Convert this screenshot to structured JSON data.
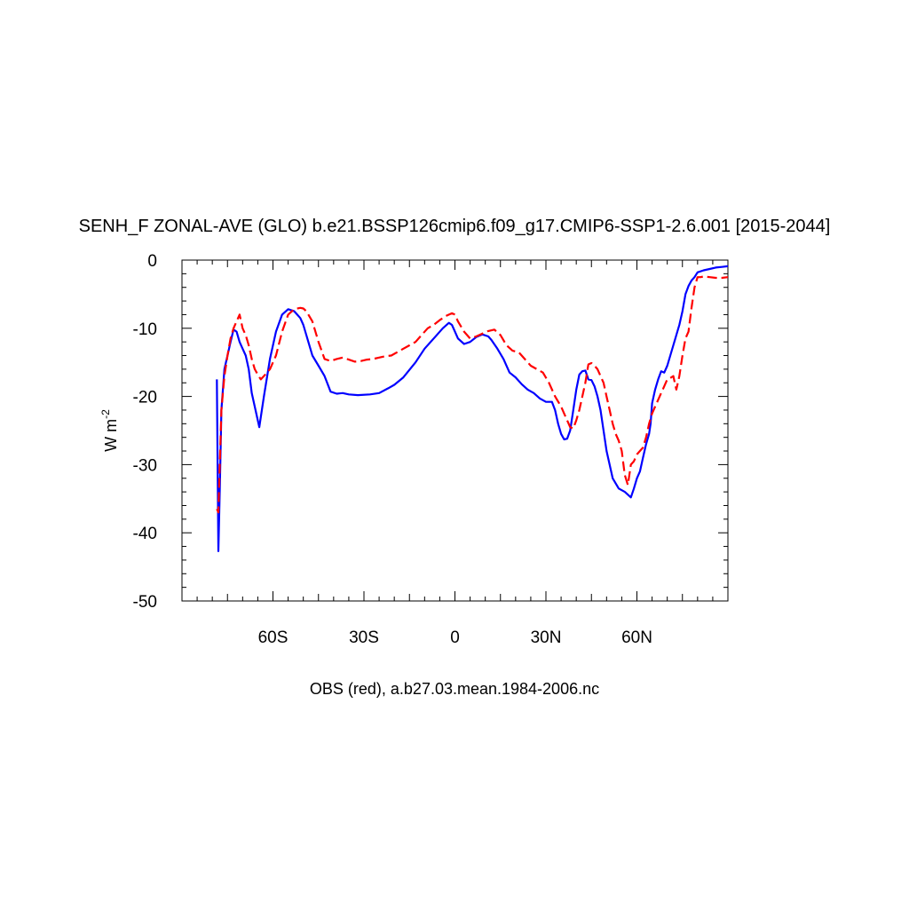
{
  "chart_data": {
    "type": "line",
    "title": "SENH_F ZONAL-AVE (GLO) b.e21.BSSP126cmip6.f09_g17.CMIP6-SSP1-2.6.001 [2015-2044]",
    "xlabel": "OBS (red), a.b27.03.mean.1984-2006.nc",
    "ylabel": {
      "base": "W m",
      "sup": "-2"
    },
    "xlim": [
      -90,
      90
    ],
    "ylim": [
      -50,
      0
    ],
    "grid": false,
    "x_ticks": [
      {
        "value": -60,
        "label": "60S"
      },
      {
        "value": -30,
        "label": "30S"
      },
      {
        "value": 0,
        "label": "0"
      },
      {
        "value": 30,
        "label": "30N"
      },
      {
        "value": 60,
        "label": "60N"
      }
    ],
    "y_ticks": [
      {
        "value": 0,
        "label": "0"
      },
      {
        "value": -10,
        "label": "-10"
      },
      {
        "value": -20,
        "label": "-20"
      },
      {
        "value": -30,
        "label": "-30"
      },
      {
        "value": -40,
        "label": "-40"
      },
      {
        "value": -50,
        "label": "-50"
      }
    ],
    "series": [
      {
        "color": "#0000ff",
        "dash": "solid",
        "x": [
          -78.5,
          -78,
          -77.5,
          -77,
          -76,
          -75,
          -74,
          -73,
          -72,
          -71,
          -70,
          -69,
          -68,
          -67,
          -66,
          -65,
          -64.5,
          -63,
          -61,
          -59,
          -57,
          -55,
          -53,
          -52,
          -51,
          -50,
          -49,
          -47,
          -45,
          -43,
          -41,
          -39,
          -37,
          -35,
          -32,
          -28,
          -25,
          -22,
          -20,
          -17,
          -13,
          -10,
          -7,
          -4,
          -2,
          -1,
          0,
          1,
          3,
          5,
          7,
          9,
          11,
          12,
          14,
          16,
          18,
          20,
          22,
          24,
          26,
          28,
          30,
          32,
          33,
          34,
          35,
          36,
          37,
          38,
          39,
          40,
          41,
          42,
          43,
          44,
          45,
          46,
          47,
          48,
          49,
          50,
          52,
          54,
          56,
          58,
          59,
          60,
          61,
          62,
          63,
          64,
          64.5,
          65,
          66,
          67,
          68,
          69,
          70,
          71,
          72,
          73,
          74,
          75,
          76,
          77,
          78,
          79,
          80,
          82,
          84,
          86,
          88,
          90
        ],
        "y": [
          -17.5,
          -42.7,
          -33,
          -22,
          -16,
          -14,
          -12,
          -10.2,
          -10.5,
          -12,
          -13,
          -14,
          -16,
          -19.5,
          -21.5,
          -23.5,
          -24.5,
          -20,
          -14.5,
          -10.5,
          -8,
          -7.2,
          -7.5,
          -8,
          -8.5,
          -9.5,
          -11,
          -14,
          -15.5,
          -17,
          -19.3,
          -19.6,
          -19.5,
          -19.7,
          -19.8,
          -19.7,
          -19.5,
          -18.8,
          -18.3,
          -17.2,
          -15,
          -13,
          -11.5,
          -10,
          -9.2,
          -9.5,
          -10.5,
          -11.5,
          -12.3,
          -12,
          -11.3,
          -10.9,
          -11.2,
          -11.7,
          -13,
          -14.5,
          -16.5,
          -17.2,
          -18.2,
          -19,
          -19.5,
          -20.3,
          -20.8,
          -20.8,
          -22,
          -24,
          -25.5,
          -26.3,
          -26.2,
          -25,
          -22,
          -19,
          -16.8,
          -16.3,
          -16.2,
          -17.5,
          -17.6,
          -18.5,
          -20,
          -22,
          -25,
          -28,
          -32,
          -33.5,
          -34,
          -34.8,
          -33.5,
          -32,
          -31,
          -29,
          -27,
          -25.5,
          -24,
          -21,
          -19,
          -17.5,
          -16.3,
          -16.5,
          -15.5,
          -14,
          -12.5,
          -11,
          -9.5,
          -7.5,
          -5,
          -3.8,
          -3,
          -2.5,
          -1.8,
          -1.5,
          -1.3,
          -1.1,
          -1.0,
          -0.9
        ]
      },
      {
        "color": "#ff0000",
        "dash": "dashed",
        "x": [
          -78.5,
          -78,
          -77,
          -76,
          -75,
          -74,
          -73,
          -72,
          -71,
          -70,
          -69,
          -68,
          -67,
          -66,
          -65,
          -64,
          -63,
          -61,
          -59,
          -57,
          -55,
          -53,
          -51,
          -50,
          -49,
          -47,
          -45,
          -43,
          -41,
          -39,
          -37,
          -35,
          -33,
          -31,
          -29,
          -27,
          -25,
          -23,
          -21,
          -19,
          -17,
          -15,
          -13,
          -11,
          -9,
          -7,
          -5,
          -3,
          -1,
          0,
          1,
          3,
          5,
          7,
          9,
          11,
          13,
          15,
          17,
          19,
          21,
          23,
          25,
          27,
          29,
          31,
          33,
          35,
          37,
          38,
          39,
          40,
          41,
          42,
          43,
          44,
          45,
          46,
          47,
          48,
          49,
          50,
          51,
          52,
          53,
          54,
          55,
          56,
          57,
          58,
          59,
          60,
          61,
          62,
          63,
          64,
          65,
          66,
          67,
          68,
          69,
          70,
          71,
          72,
          73,
          74,
          75,
          76,
          77,
          78,
          79,
          80,
          81,
          82,
          84,
          86,
          88,
          90
        ],
        "y": [
          -36.5,
          -37,
          -22,
          -17,
          -14,
          -11.5,
          -10,
          -9,
          -8,
          -10,
          -11,
          -12.5,
          -14.5,
          -16,
          -16.8,
          -17.5,
          -17,
          -16,
          -14,
          -10.5,
          -8,
          -7.2,
          -7,
          -7.1,
          -7.5,
          -9,
          -12,
          -14.5,
          -14.8,
          -14.5,
          -14.3,
          -14.6,
          -14.9,
          -14.8,
          -14.6,
          -14.5,
          -14.3,
          -14.1,
          -14,
          -13.5,
          -13,
          -12.5,
          -12,
          -11,
          -10,
          -9.5,
          -8.8,
          -8.2,
          -7.8,
          -8,
          -9,
          -10.5,
          -11.5,
          -11.2,
          -10.8,
          -10.4,
          -10.2,
          -11,
          -12.5,
          -13.3,
          -13.5,
          -14.5,
          -15.5,
          -16,
          -16.5,
          -18,
          -20,
          -21.5,
          -23.5,
          -24.5,
          -24.7,
          -23.5,
          -22,
          -20,
          -18,
          -15.3,
          -15.1,
          -15.5,
          -16,
          -17,
          -18,
          -20,
          -22,
          -24,
          -25.5,
          -26.5,
          -28,
          -31.5,
          -33,
          -30,
          -29.5,
          -28.5,
          -28,
          -27.5,
          -26,
          -24,
          -22.5,
          -21.5,
          -20.5,
          -19.5,
          -18.5,
          -17.5,
          -17.3,
          -17,
          -19,
          -17,
          -14,
          -11.5,
          -10.5,
          -7,
          -4,
          -2.5,
          -2.5,
          -2.4,
          -2.5,
          -2.6,
          -2.6,
          -2.5
        ]
      }
    ]
  }
}
